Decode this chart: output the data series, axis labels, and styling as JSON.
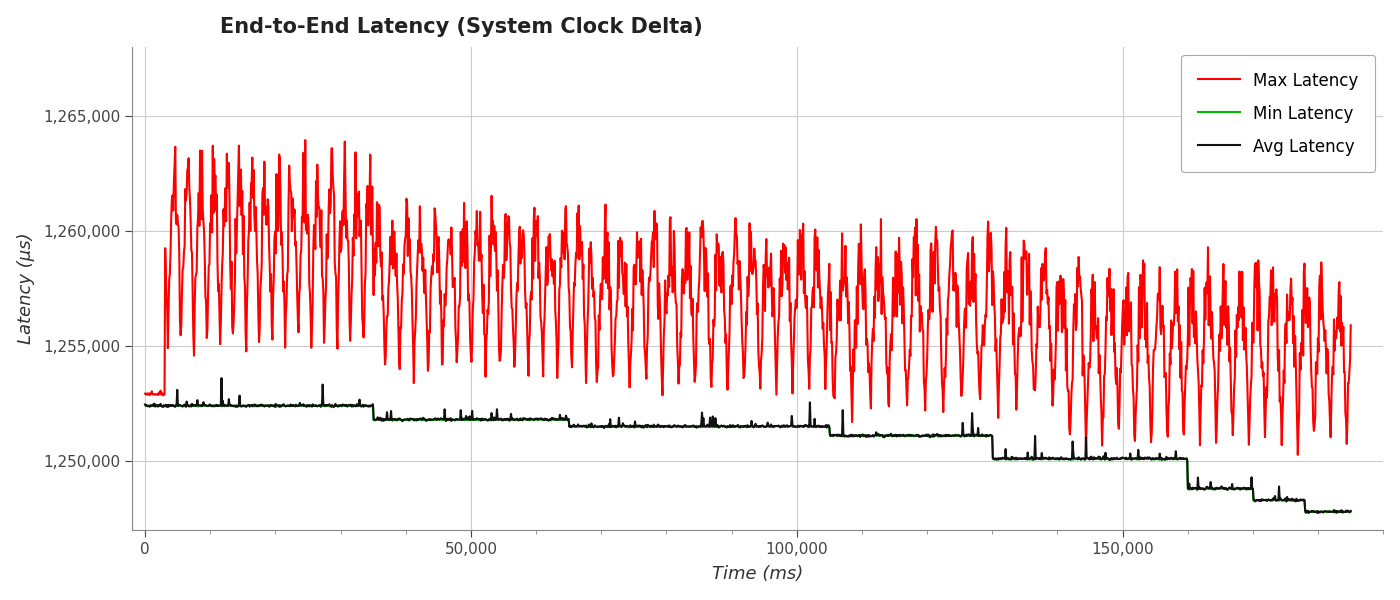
{
  "title": "End-to-End Latency (System Clock Delta)",
  "xlabel": "Time (ms)",
  "ylabel": "Latency (µs)",
  "xlim": [
    -2000,
    190000
  ],
  "ylim": [
    1247000,
    1268000
  ],
  "yticks": [
    1250000,
    1255000,
    1260000,
    1265000
  ],
  "xticks": [
    0,
    50000,
    100000,
    150000
  ],
  "background_color": "#ffffff",
  "grid_color": "#cccccc",
  "min_color": "#00bb00",
  "max_color": "#ff0000",
  "avg_color": "#111111",
  "legend_labels": [
    "Min Latency",
    "Max Latency",
    "Avg Latency"
  ],
  "title_fontsize": 15,
  "axis_label_fontsize": 13,
  "tick_fontsize": 11,
  "line_width": 1.5
}
